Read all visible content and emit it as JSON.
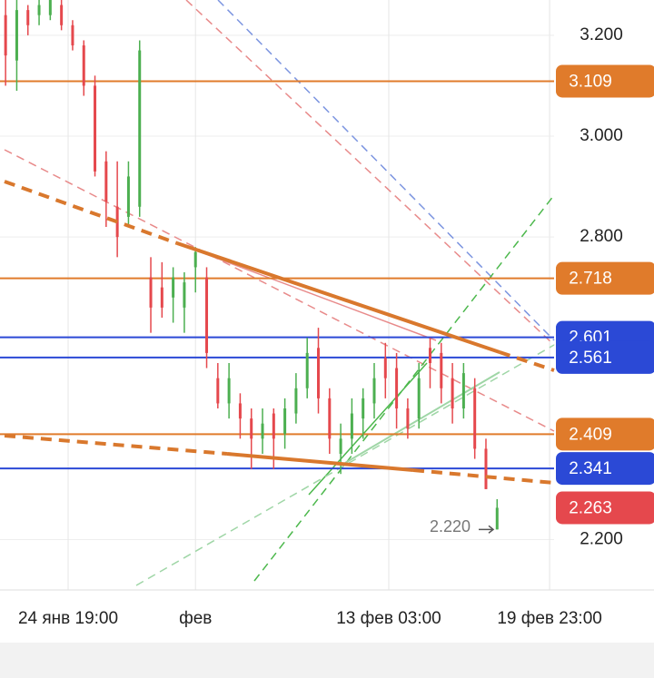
{
  "chart_data": {
    "type": "candlestick",
    "up_color": "#4caf50",
    "down_color": "#e5484d",
    "open": [
      3.24,
      3.15,
      3.25,
      3.24,
      3.24,
      3.26,
      3.22,
      3.18,
      3.1,
      2.95,
      2.86,
      2.84,
      2.86,
      2.72,
      2.7,
      2.68,
      2.66,
      2.74,
      2.72,
      2.52,
      2.47,
      2.47,
      2.44,
      2.4,
      2.45,
      2.41,
      2.45,
      2.5,
      2.58,
      2.48,
      2.37,
      2.4,
      2.44,
      2.47,
      2.56,
      2.54,
      2.46,
      2.44,
      2.58,
      2.57,
      2.52,
      2.46,
      2.5,
      2.38,
      2.22
    ],
    "high": [
      3.27,
      3.27,
      3.26,
      3.27,
      3.27,
      3.27,
      3.23,
      3.19,
      3.12,
      2.97,
      2.95,
      2.95,
      3.19,
      2.76,
      2.75,
      2.74,
      2.73,
      2.78,
      2.74,
      2.55,
      2.55,
      2.49,
      2.46,
      2.46,
      2.46,
      2.48,
      2.53,
      2.6,
      2.62,
      2.5,
      2.43,
      2.48,
      2.5,
      2.55,
      2.59,
      2.57,
      2.48,
      2.55,
      2.6,
      2.59,
      2.55,
      2.55,
      2.52,
      2.4,
      2.28
    ],
    "low": [
      3.1,
      3.09,
      3.2,
      3.22,
      3.23,
      3.21,
      3.17,
      3.08,
      2.92,
      2.82,
      2.76,
      2.82,
      2.84,
      2.61,
      2.64,
      2.63,
      2.61,
      2.69,
      2.54,
      2.46,
      2.44,
      2.4,
      2.34,
      2.37,
      2.34,
      2.38,
      2.43,
      2.48,
      2.45,
      2.37,
      2.33,
      2.37,
      2.4,
      2.44,
      2.48,
      2.42,
      2.4,
      2.42,
      2.5,
      2.47,
      2.43,
      2.44,
      2.36,
      2.3,
      2.22
    ],
    "close": [
      3.16,
      3.25,
      3.22,
      3.26,
      3.27,
      3.22,
      3.18,
      3.1,
      2.93,
      2.87,
      2.8,
      2.92,
      3.17,
      2.66,
      2.66,
      2.72,
      2.71,
      2.77,
      2.57,
      2.47,
      2.52,
      2.44,
      2.4,
      2.43,
      2.4,
      2.46,
      2.5,
      2.57,
      2.48,
      2.4,
      2.4,
      2.45,
      2.48,
      2.52,
      2.52,
      2.46,
      2.42,
      2.52,
      2.55,
      2.5,
      2.46,
      2.53,
      2.38,
      2.3,
      2.263
    ],
    "xlim": [
      -0.5,
      49.1
    ],
    "xticks": [
      {
        "value": 5.6,
        "label": "24 янв 19:00"
      },
      {
        "value": 17,
        "label": "фев"
      },
      {
        "value": 34.3,
        "label": "13 фев 03:00"
      },
      {
        "value": 48.7,
        "label": "19 фев 23:00"
      }
    ],
    "ylim": [
      2.1,
      3.27
    ],
    "yticks": [
      {
        "value": 3.2,
        "label": "3.200"
      },
      {
        "value": 3.0,
        "label": "3.000"
      },
      {
        "value": 2.8,
        "label": "2.800"
      },
      {
        "value": 2.2,
        "label": "2.200"
      }
    ],
    "grid": true,
    "levels": [
      {
        "value": 3.109,
        "color": "#e07b2b",
        "line": true
      },
      {
        "value": 2.718,
        "color": "#e07b2b",
        "line": true
      },
      {
        "value": 2.601,
        "color": "#2b49d6",
        "line": true
      },
      {
        "value": 2.561,
        "color": "#2b49d6",
        "line": true
      },
      {
        "value": 2.409,
        "color": "#e07b2b",
        "line": true
      },
      {
        "value": 2.341,
        "color": "#2b49d6",
        "line": true
      },
      {
        "value": 2.263,
        "color": "#e5484d",
        "line": false
      }
    ],
    "annotation": {
      "value": 2.22,
      "label": "2.220"
    }
  }
}
